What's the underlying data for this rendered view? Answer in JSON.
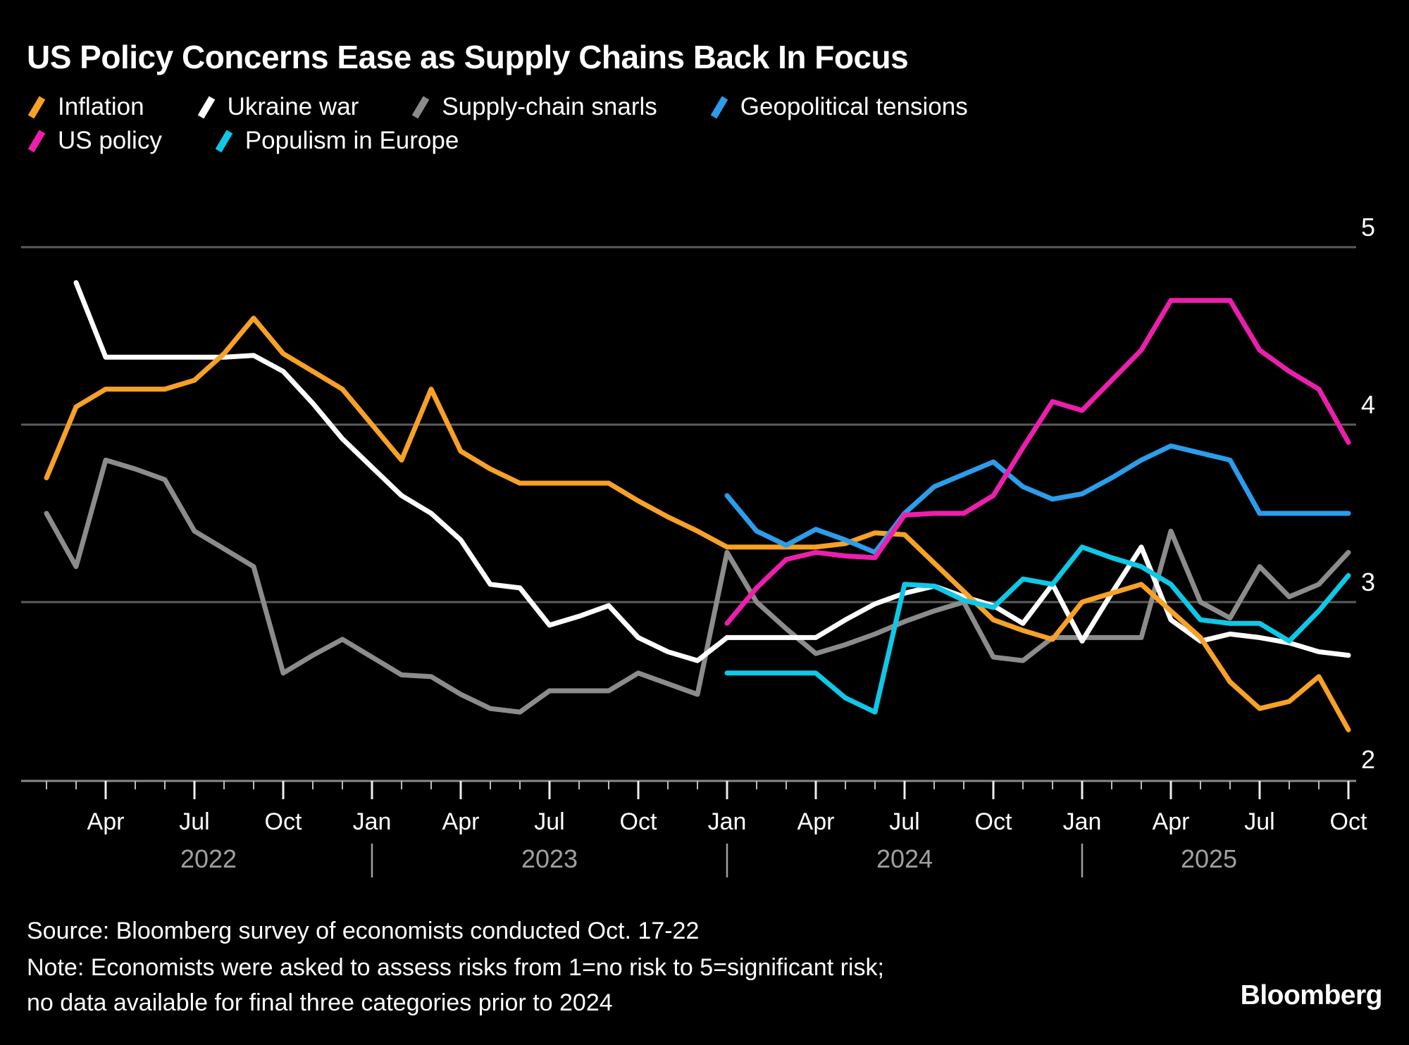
{
  "title": "US Policy Concerns Ease as Supply Chains Back In Focus",
  "footer": {
    "source": "Source: Bloomberg survey of economists conducted Oct. 17-22",
    "note1": "Note: Economists were asked to assess risks from 1=no risk to 5=significant risk;",
    "note2": "no data available for final three categories prior to 2024",
    "logo": "Bloomberg"
  },
  "colors": {
    "background": "#000000",
    "gridline": "#5c5c5c",
    "axis": "#8a8a8a",
    "minor_tick": "#bbbbbb",
    "major_tick": "#eeeeee",
    "month_label": "#ffffff",
    "year_label": "#a0a0a0",
    "y_label": "#ffffff"
  },
  "chart_data": {
    "type": "line",
    "title": "US Policy Concerns Ease as Supply Chains Back In Focus",
    "x_unit": "monthly survey, months since Jan 2022",
    "x_range": [
      "2022-02",
      "2025-10"
    ],
    "ylim": [
      2,
      5
    ],
    "yticks": [
      2,
      3,
      4,
      5
    ],
    "grid_values": [
      3,
      4,
      5
    ],
    "x_major_tick_labels": [
      "Apr",
      "Jul",
      "Oct",
      "Jan",
      "Apr",
      "Jul",
      "Oct",
      "Jan",
      "Apr",
      "Jul",
      "Oct",
      "Jan",
      "Apr",
      "Jul",
      "Oct"
    ],
    "year_labels": [
      "2022",
      "2023",
      "2024",
      "2025"
    ],
    "legend_rows": [
      [
        "Inflation",
        "Ukraine war",
        "Supply-chain snarls",
        "Geopolitical tensions"
      ],
      [
        "US policy",
        "Populism in Europe"
      ]
    ],
    "series": [
      {
        "name": "Inflation",
        "color": "#F7A127",
        "start": "2022-02",
        "start_index": 1,
        "values": [
          3.7,
          4.1,
          4.2,
          4.2,
          4.2,
          4.25,
          4.4,
          4.6,
          4.4,
          4.3,
          4.2,
          4.0,
          3.8,
          4.2,
          3.85,
          3.75,
          3.67,
          3.67,
          3.67,
          3.67,
          3.57,
          3.48,
          3.4,
          3.31,
          3.31,
          3.31,
          3.31,
          3.33,
          3.39,
          3.38,
          3.22,
          3.06,
          2.9,
          2.84,
          2.79,
          3.0,
          3.05,
          3.1,
          2.95,
          2.8,
          2.55,
          2.4,
          2.44,
          2.58,
          2.28
        ]
      },
      {
        "name": "Ukraine war",
        "color": "#FFFFFF",
        "start": "2022-03",
        "start_index": 2,
        "values": [
          4.8,
          4.38,
          4.38,
          4.38,
          4.38,
          4.38,
          4.39,
          4.3,
          4.12,
          3.92,
          3.76,
          3.6,
          3.5,
          3.35,
          3.1,
          3.08,
          2.87,
          2.92,
          2.98,
          2.8,
          2.72,
          2.67,
          2.8,
          2.8,
          2.8,
          2.8,
          2.9,
          2.99,
          3.05,
          3.09,
          3.03,
          2.98,
          2.88,
          3.1,
          2.78,
          3.05,
          3.31,
          2.9,
          2.78,
          2.82,
          2.8,
          2.77,
          2.72,
          2.7
        ]
      },
      {
        "name": "Supply-chain snarls",
        "color": "#8C8C8C",
        "start": "2022-02",
        "start_index": 1,
        "values": [
          3.5,
          3.2,
          3.8,
          3.75,
          3.69,
          3.4,
          3.3,
          3.2,
          2.6,
          2.7,
          2.79,
          2.69,
          2.59,
          2.58,
          2.48,
          2.4,
          2.38,
          2.5,
          2.5,
          2.5,
          2.6,
          2.54,
          2.48,
          3.28,
          3.0,
          2.85,
          2.71,
          2.76,
          2.82,
          2.89,
          2.95,
          3.0,
          2.69,
          2.67,
          2.8,
          2.8,
          2.8,
          2.8,
          3.4,
          3.0,
          2.91,
          3.2,
          3.03,
          3.1,
          3.28
        ]
      },
      {
        "name": "Geopolitical tensions",
        "color": "#2D9CEB",
        "start": "2024-01",
        "start_index": 24,
        "values": [
          3.6,
          3.4,
          3.32,
          3.41,
          3.35,
          3.28,
          3.5,
          3.65,
          3.72,
          3.79,
          3.65,
          3.58,
          3.61,
          3.7,
          3.8,
          3.88,
          3.84,
          3.8,
          3.5,
          3.5,
          3.5,
          3.5
        ]
      },
      {
        "name": "US policy",
        "color": "#EC1FAC",
        "start": "2024-01",
        "start_index": 24,
        "values": [
          2.88,
          3.08,
          3.24,
          3.28,
          3.26,
          3.25,
          3.49,
          3.5,
          3.5,
          3.6,
          3.87,
          4.13,
          4.08,
          4.25,
          4.42,
          4.7,
          4.7,
          4.7,
          4.42,
          4.3,
          4.2,
          3.9
        ]
      },
      {
        "name": "Populism in Europe",
        "color": "#0FC8E6",
        "start": "2024-01",
        "start_index": 24,
        "values": [
          2.6,
          2.6,
          2.6,
          2.6,
          2.46,
          2.38,
          3.1,
          3.09,
          3.01,
          2.97,
          3.13,
          3.1,
          3.31,
          3.25,
          3.2,
          3.1,
          2.9,
          2.88,
          2.88,
          2.78,
          2.95,
          3.15
        ]
      }
    ]
  }
}
